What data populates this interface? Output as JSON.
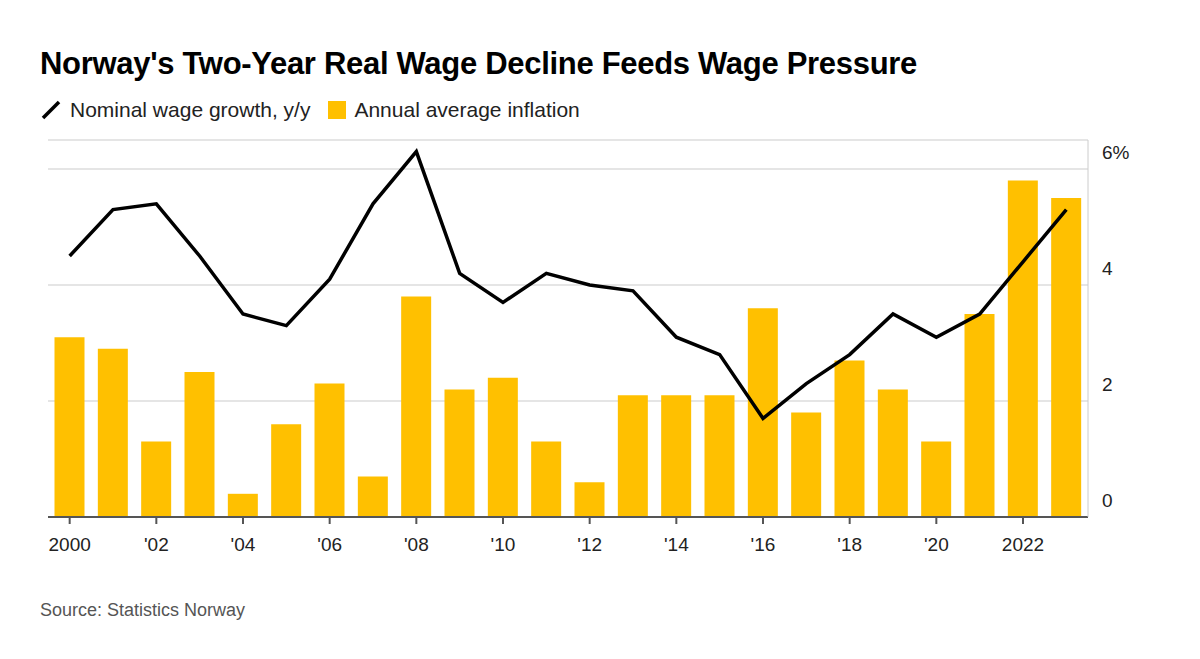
{
  "chart_data": {
    "type": "bar",
    "title": "Norway's Two-Year Real Wage Decline Feeds Wage Pressure",
    "source": "Source: Statistics Norway",
    "categories": [
      "2000",
      null,
      "'02",
      null,
      "'04",
      null,
      "'06",
      null,
      "'08",
      null,
      "'10",
      null,
      "'12",
      null,
      "'14",
      null,
      "'16",
      null,
      "'18",
      null,
      "'20",
      null,
      "2022",
      null
    ],
    "series": [
      {
        "name": "Nominal wage growth, y/y",
        "type": "line",
        "color": "#000000",
        "values": [
          4.5,
          5.3,
          5.4,
          4.5,
          3.5,
          3.3,
          4.1,
          5.4,
          6.3,
          4.2,
          3.7,
          4.2,
          4.0,
          3.9,
          3.1,
          2.8,
          1.7,
          2.3,
          2.8,
          3.5,
          3.1,
          3.5,
          4.4,
          5.3
        ]
      },
      {
        "name": "Annual average inflation",
        "type": "bar",
        "color": "#ffc000",
        "values": [
          3.1,
          2.9,
          1.3,
          2.5,
          0.4,
          1.6,
          2.3,
          0.7,
          3.8,
          2.2,
          2.4,
          1.3,
          0.6,
          2.1,
          2.1,
          2.1,
          3.6,
          1.8,
          2.7,
          2.2,
          1.3,
          3.5,
          5.8,
          5.5
        ]
      }
    ],
    "ylim": [
      0,
      6.5
    ],
    "yticks": [
      0,
      2,
      4,
      {
        "value": 6,
        "label": "6%"
      }
    ],
    "grid": true
  }
}
